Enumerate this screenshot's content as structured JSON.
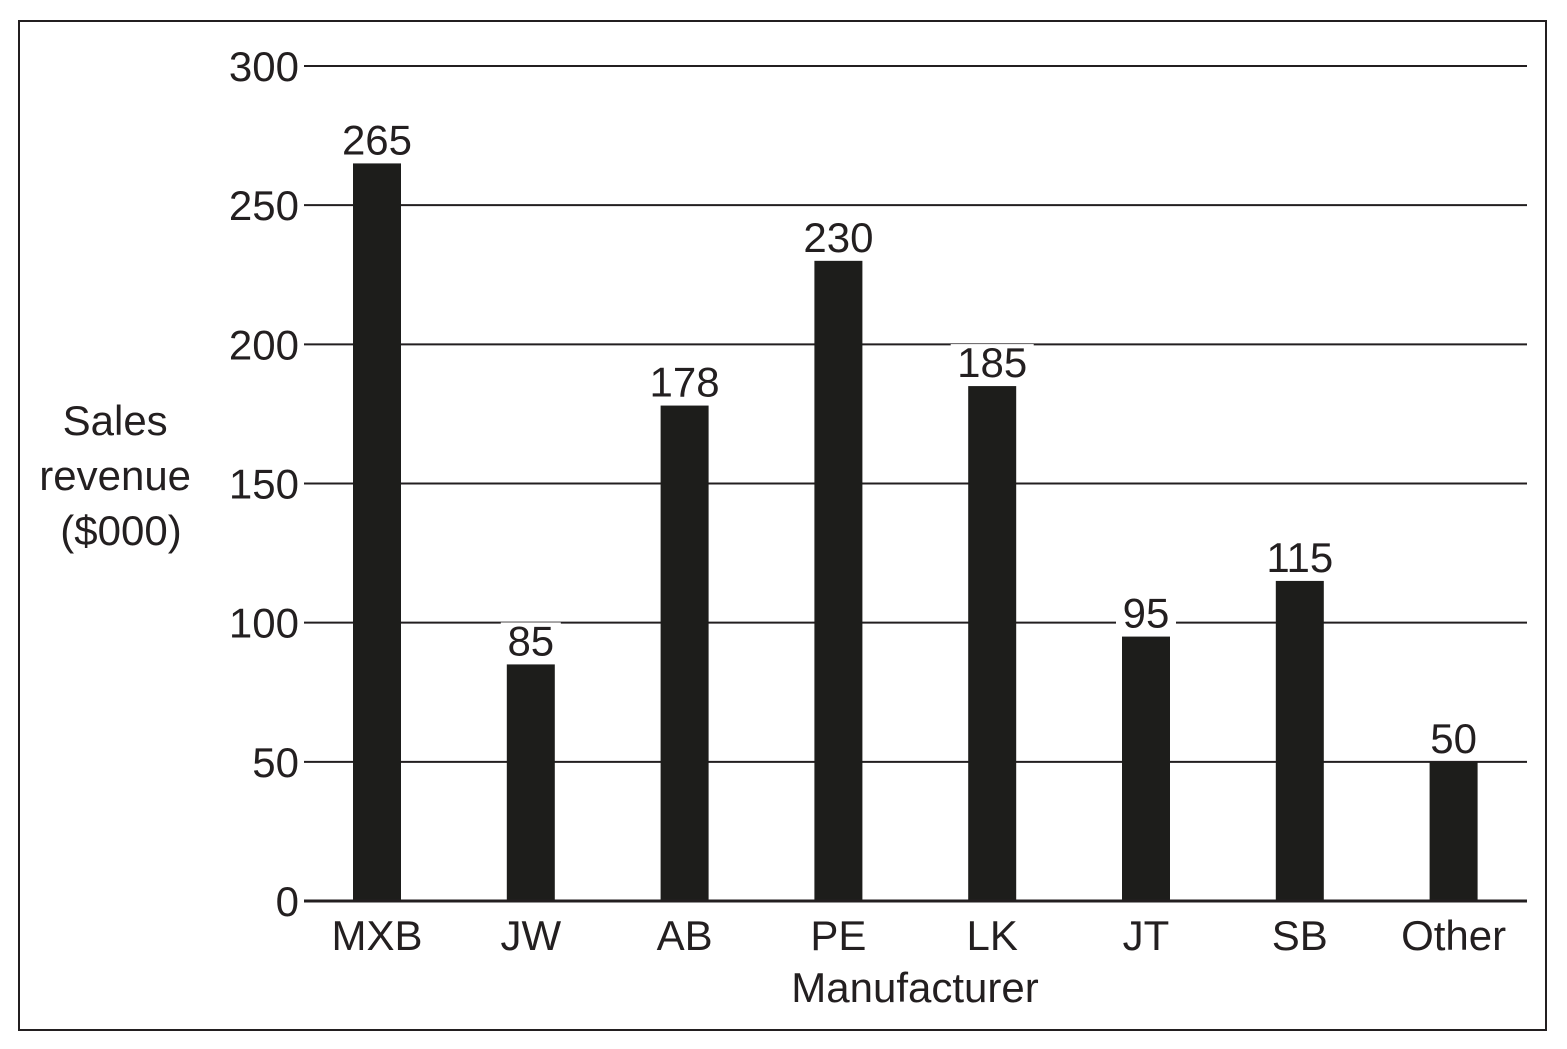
{
  "chart_data": {
    "type": "bar",
    "title": "",
    "xlabel": "Manufacturer",
    "ylabel_lines": [
      "Sales",
      "revenue",
      "($000)"
    ],
    "categories": [
      "MXB",
      "JW",
      "AB",
      "PE",
      "LK",
      "JT",
      "SB",
      "Other"
    ],
    "values": [
      265,
      85,
      178,
      230,
      185,
      95,
      115,
      50
    ],
    "data_labels": [
      "265",
      "85",
      "178",
      "230",
      "185",
      "95",
      "115",
      "50"
    ],
    "ylim": [
      0,
      300
    ],
    "yticks": [
      0,
      50,
      100,
      150,
      200,
      250,
      300
    ],
    "grid": true,
    "legend": "none",
    "colors": {
      "bar": "#1d1d1b",
      "grid": "#231f20",
      "text": "#231f20",
      "frame": "#231f20"
    }
  }
}
